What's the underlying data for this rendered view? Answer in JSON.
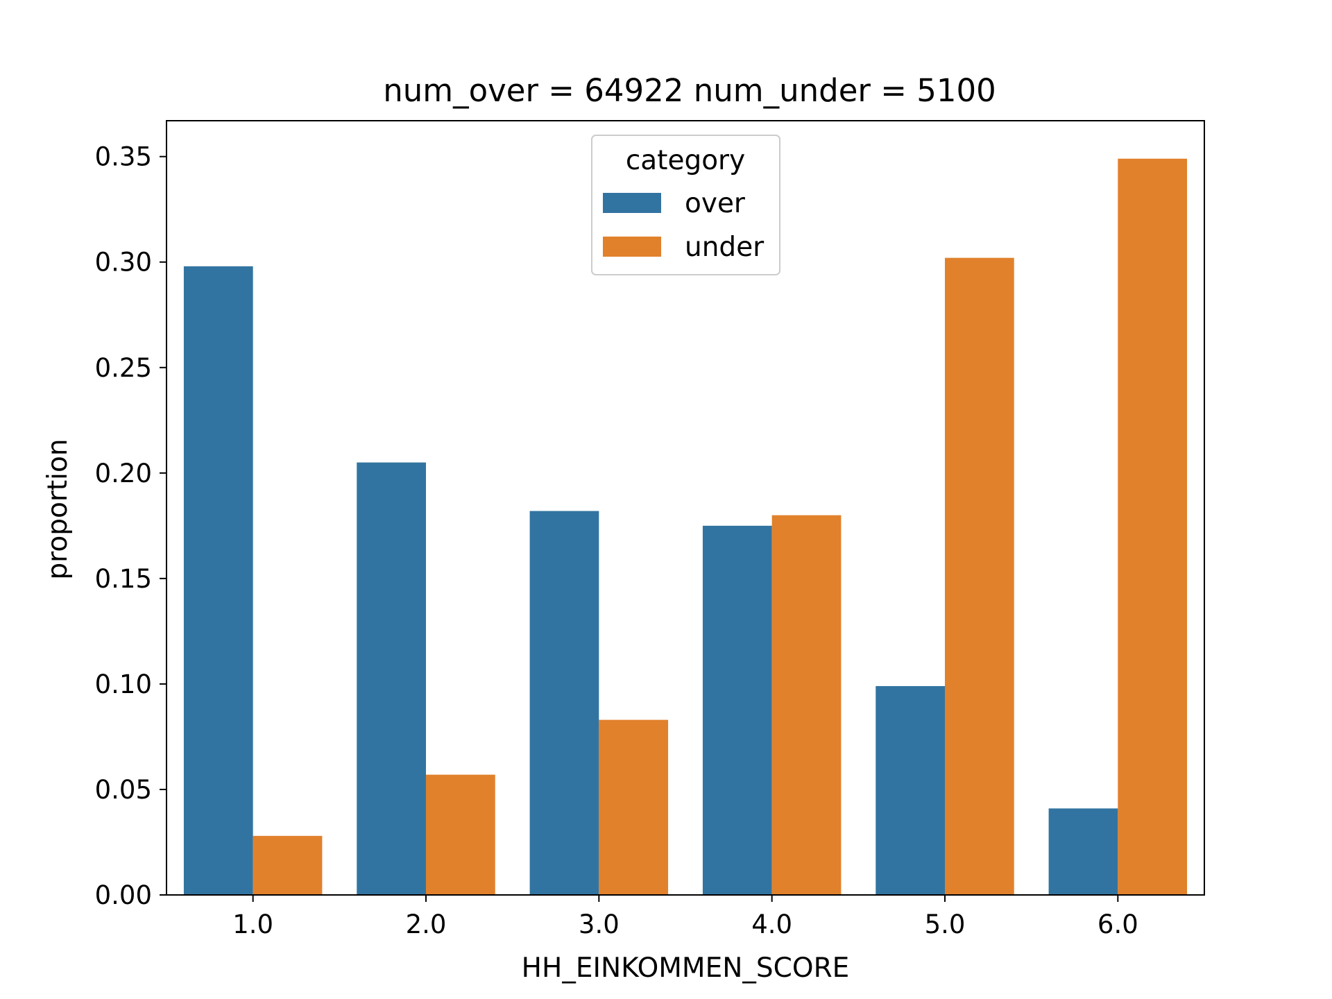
{
  "chart_data": {
    "type": "bar",
    "title": "num_over = 64922  num_under = 5100",
    "xlabel": "HH_EINKOMMEN_SCORE",
    "ylabel": "proportion",
    "categories": [
      "1.0",
      "2.0",
      "3.0",
      "4.0",
      "5.0",
      "6.0"
    ],
    "series": [
      {
        "name": "over",
        "color": "#3274a1",
        "values": [
          0.298,
          0.205,
          0.182,
          0.175,
          0.099,
          0.041
        ]
      },
      {
        "name": "under",
        "color": "#e1812c",
        "values": [
          0.028,
          0.057,
          0.083,
          0.18,
          0.302,
          0.349
        ]
      }
    ],
    "ylim": [
      0,
      0.367
    ],
    "yticks": [
      0.0,
      0.05,
      0.1,
      0.15,
      0.2,
      0.25,
      0.3,
      0.35
    ],
    "ytick_labels": [
      "0.00",
      "0.05",
      "0.10",
      "0.15",
      "0.20",
      "0.25",
      "0.30",
      "0.35"
    ],
    "grid": false,
    "legend": {
      "title": "category",
      "placement": "top-center"
    }
  }
}
